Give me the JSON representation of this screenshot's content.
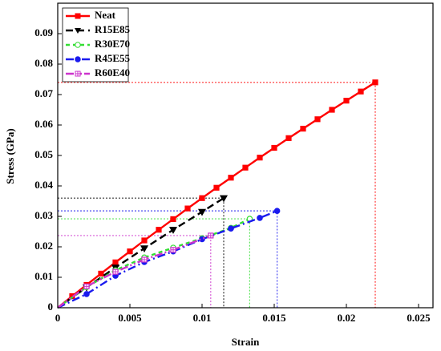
{
  "chart_data": {
    "type": "line",
    "x_label": "Strain",
    "y_label": "Stress (GPa)",
    "xlim": [
      0,
      0.026
    ],
    "ylim": [
      0,
      0.1
    ],
    "xticks": [
      0,
      0.005,
      0.01,
      0.015,
      0.02,
      0.025
    ],
    "yticks": [
      0,
      0.01,
      0.02,
      0.03,
      0.04,
      0.05,
      0.06,
      0.07,
      0.08,
      0.09
    ],
    "legend": "upper left",
    "series": [
      {
        "name": "Neat",
        "color": "#ff0000",
        "x": [
          0,
          0.001,
          0.002,
          0.003,
          0.004,
          0.005,
          0.006,
          0.007,
          0.008,
          0.009,
          0.01,
          0.011,
          0.012,
          0.013,
          0.014,
          0.015,
          0.016,
          0.017,
          0.018,
          0.019,
          0.02,
          0.021,
          0.022
        ],
        "values": [
          0,
          0.0038,
          0.0075,
          0.0112,
          0.0149,
          0.0185,
          0.0221,
          0.0256,
          0.0291,
          0.0326,
          0.036,
          0.0394,
          0.0427,
          0.046,
          0.0493,
          0.0525,
          0.0557,
          0.0588,
          0.0619,
          0.065,
          0.068,
          0.071,
          0.074
        ]
      },
      {
        "name": "R15E85",
        "color": "#000000",
        "x": [
          0,
          0.002,
          0.004,
          0.006,
          0.008,
          0.01,
          0.0115
        ],
        "values": [
          0,
          0.0067,
          0.0132,
          0.0195,
          0.0256,
          0.0315,
          0.036
        ]
      },
      {
        "name": "R30E70",
        "color": "#33dd33",
        "x": [
          0,
          0.002,
          0.004,
          0.006,
          0.008,
          0.01,
          0.012,
          0.0133
        ],
        "values": [
          0,
          0.0068,
          0.0123,
          0.0165,
          0.0197,
          0.0228,
          0.0262,
          0.0292
        ]
      },
      {
        "name": "R45E55",
        "color": "#1a1aee",
        "x": [
          0,
          0.002,
          0.004,
          0.006,
          0.008,
          0.01,
          0.012,
          0.014,
          0.0152
        ],
        "values": [
          0,
          0.0045,
          0.0105,
          0.015,
          0.0185,
          0.0225,
          0.026,
          0.0295,
          0.0318
        ]
      },
      {
        "name": "R60E40",
        "color": "#cc33cc",
        "x": [
          0,
          0.002,
          0.004,
          0.006,
          0.008,
          0.0106
        ],
        "values": [
          0,
          0.007,
          0.0118,
          0.0158,
          0.019,
          0.0237
        ]
      }
    ]
  }
}
